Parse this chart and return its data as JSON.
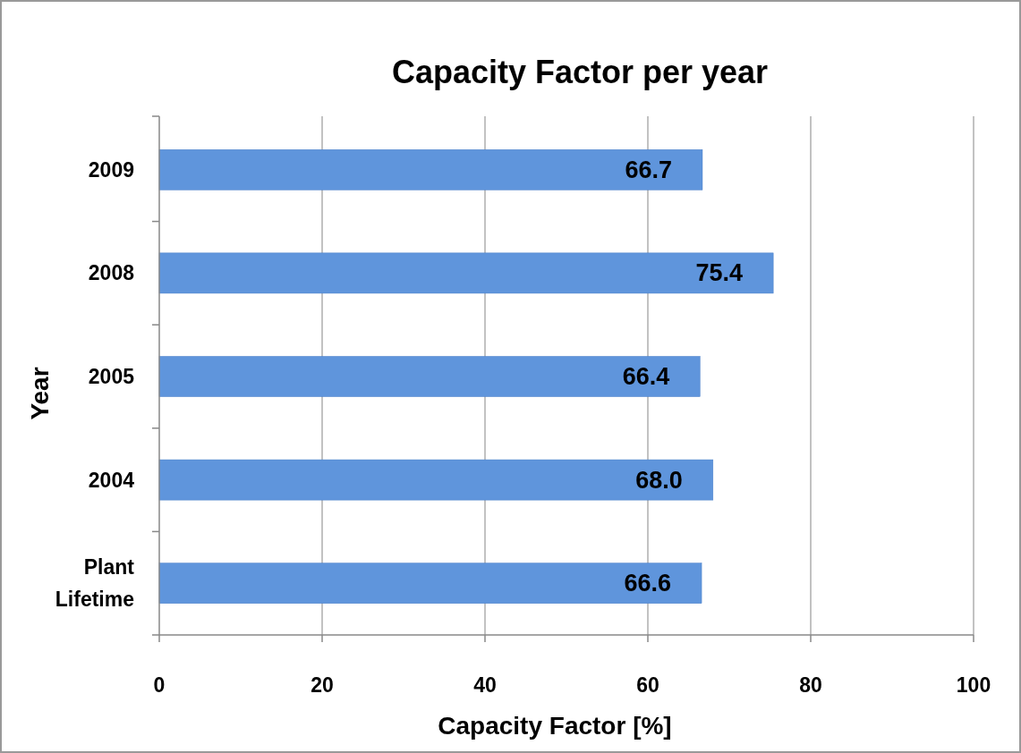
{
  "chart_data": {
    "type": "bar",
    "orientation": "horizontal",
    "title": "Capacity Factor per year",
    "xlabel": "Capacity Factor [%]",
    "ylabel": "Year",
    "categories": [
      "2009",
      "2008",
      "2005",
      "2004",
      "Plant Lifetime"
    ],
    "values": [
      66.7,
      75.4,
      66.4,
      68.0,
      66.6
    ],
    "value_labels": [
      "66.7",
      "75.4",
      "66.4",
      "68.0",
      "66.6"
    ],
    "color": "#5f95dc",
    "xlim": [
      0,
      100
    ],
    "xticks": [
      0,
      20,
      40,
      60,
      80,
      100
    ],
    "grid": "x"
  }
}
